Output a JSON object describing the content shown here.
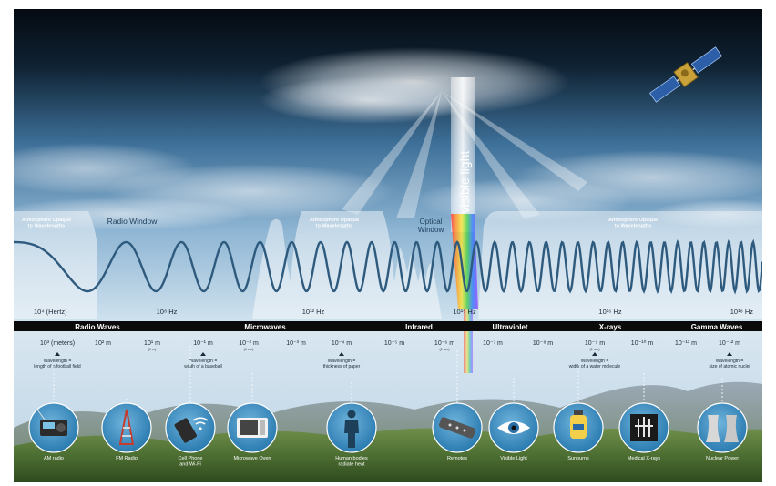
{
  "labels": {
    "opaque_left": [
      "Atmosphere Opaque",
      "to Wavelengths"
    ],
    "opaque_mid": [
      "Atmosphere Opaque",
      "to Wavelengths"
    ],
    "opaque_right": [
      "Atmosphere Opaque",
      "to Wavelengths"
    ],
    "radio_window": "Radio Window",
    "optical_window": [
      "Optical",
      "Window"
    ],
    "visible_light": "visible light"
  },
  "frequencies": [
    "10⁴ (Hertz)",
    "10⁸ Hz",
    "10¹² Hz",
    "10¹⁵ Hz",
    "10¹⁶ Hz",
    "10¹⁸ Hz"
  ],
  "bands": [
    "Radio Waves",
    "Microwaves",
    "Infrared",
    "Ultraviolet",
    "X-rays",
    "Gamma Waves"
  ],
  "wavelengths": [
    "10³ (meters)",
    "10² m",
    "10¹ m",
    "10⁻¹ m",
    "10⁻² m",
    "10⁻³ m",
    "10⁻⁴ m",
    "10⁻⁵ m",
    "10⁻⁶ m",
    "10⁻⁷ m",
    "10⁻⁸ m",
    "10⁻⁹ m",
    "10⁻¹⁰ m",
    "10⁻¹¹ m",
    "10⁻¹² m"
  ],
  "wavelength_sublabels": [
    "(1 m)",
    "(1 cm)",
    "(1 µm)",
    "(1 nm)"
  ],
  "comparisons": [
    [
      "Wavelength =",
      "length of a football field"
    ],
    [
      "Wavelength =",
      "width of a baseball"
    ],
    [
      "Wavelength =",
      "thickness of paper"
    ],
    [
      "Wavelength =",
      "width of a water molecule"
    ],
    [
      "Wavelength =",
      "size of atomic nuclei"
    ]
  ],
  "sources": [
    {
      "label": [
        "AM radio"
      ],
      "icon": "radio-icon"
    },
    {
      "label": [
        "FM Radio"
      ],
      "icon": "radio-tower-icon"
    },
    {
      "label": [
        "Cell Phone",
        "and Wi-Fi"
      ],
      "icon": "cell-phone-icon"
    },
    {
      "label": [
        "Microwave Oven"
      ],
      "icon": "microwave-oven-icon"
    },
    {
      "label": [
        "Human bodies",
        "radiate heat"
      ],
      "icon": "human-body-icon"
    },
    {
      "label": [
        "Remotes"
      ],
      "icon": "remote-control-icon"
    },
    {
      "label": [
        "Visible Light"
      ],
      "icon": "eye-icon"
    },
    {
      "label": [
        "Sunburns"
      ],
      "icon": "sunscreen-icon"
    },
    {
      "label": [
        "Medical X-rays"
      ],
      "icon": "xray-image-icon"
    },
    {
      "label": [
        "Nuclear Power"
      ],
      "icon": "cooling-tower-icon"
    }
  ],
  "icons": {
    "satellite": "satellite-icon"
  },
  "colors": {
    "sky_top": "#050a12",
    "sky_mid": "#3d6f98",
    "sky_bottom": "#b8d4e6",
    "wave": "#2e5a7e",
    "band_bar": "#0a0a0a",
    "icon_circle": "#3a8ec0"
  }
}
